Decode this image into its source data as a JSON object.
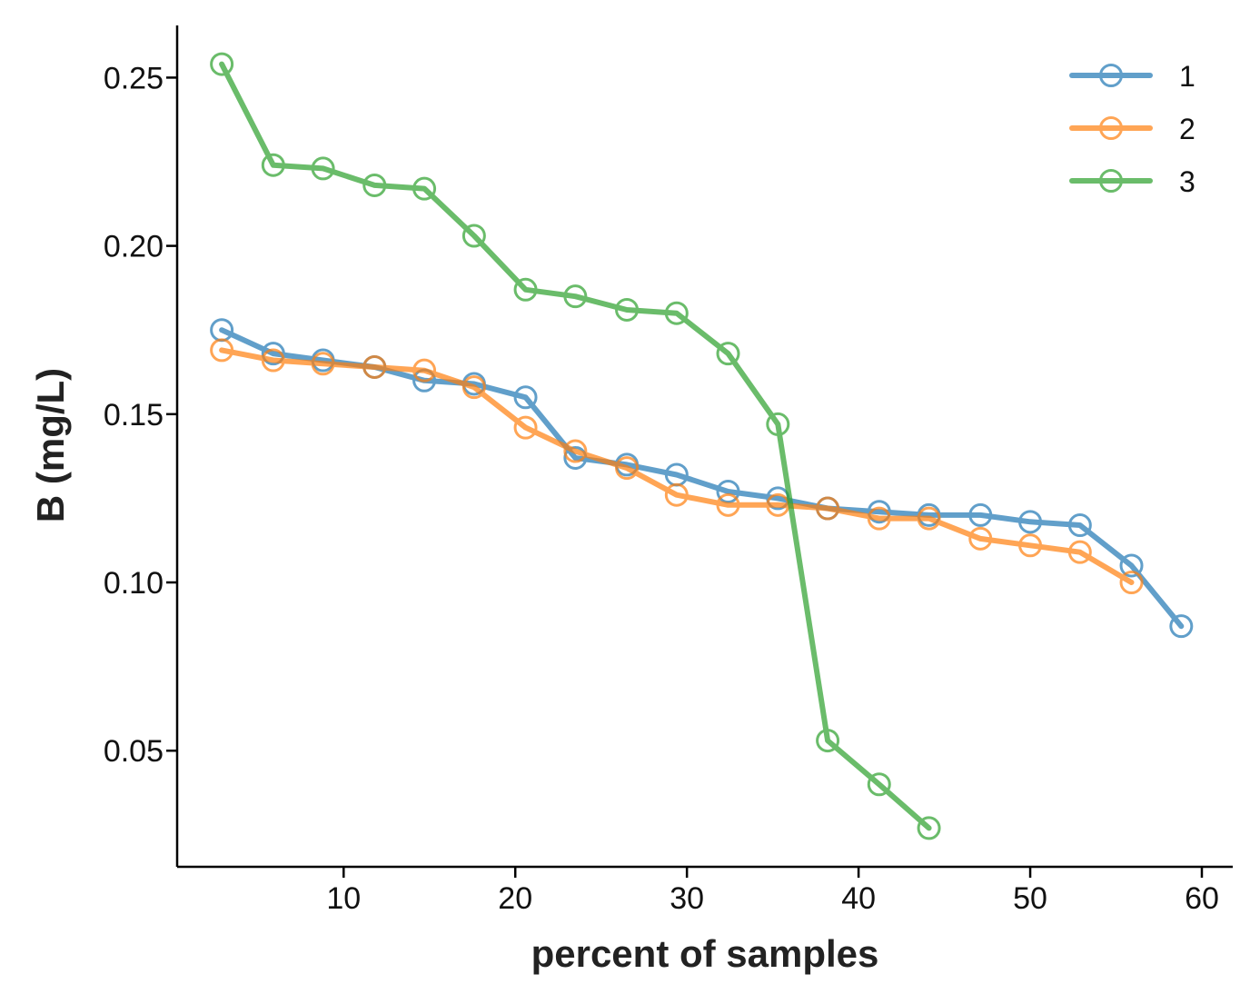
{
  "chart_data": {
    "type": "line",
    "xlabel": "percent of samples",
    "ylabel": "B (mg/L)",
    "xlim": [
      0.3,
      61.8
    ],
    "ylim": [
      0.0155,
      0.2655
    ],
    "xticks": [
      10,
      20,
      30,
      40,
      50,
      60
    ],
    "yticks": [
      0.05,
      0.1,
      0.15,
      0.2,
      0.25
    ],
    "xtick_labels": [
      "10",
      "20",
      "30",
      "40",
      "50",
      "60"
    ],
    "ytick_labels": [
      "0.05",
      "0.10",
      "0.15",
      "0.20",
      "0.25"
    ],
    "grid": false,
    "legend_position": "top-right",
    "series": [
      {
        "name": "1",
        "color": "#1f77b4",
        "x": [
          2.9,
          5.9,
          8.8,
          11.8,
          14.7,
          17.6,
          20.6,
          23.5,
          26.5,
          29.4,
          32.4,
          35.3,
          38.2,
          41.2,
          44.1,
          47.1,
          50.0,
          52.9,
          55.9,
          58.8
        ],
        "y": [
          0.175,
          0.168,
          0.166,
          0.164,
          0.16,
          0.159,
          0.155,
          0.137,
          0.135,
          0.132,
          0.127,
          0.125,
          0.122,
          0.121,
          0.12,
          0.12,
          0.118,
          0.117,
          0.105,
          0.087
        ]
      },
      {
        "name": "2",
        "color": "#ff7f0e",
        "x": [
          2.9,
          5.9,
          8.8,
          11.8,
          14.7,
          17.6,
          20.6,
          23.5,
          26.5,
          29.4,
          32.4,
          35.3,
          38.2,
          41.2,
          44.1,
          47.1,
          50.0,
          52.9,
          55.9
        ],
        "y": [
          0.169,
          0.166,
          0.165,
          0.164,
          0.163,
          0.158,
          0.146,
          0.139,
          0.134,
          0.126,
          0.123,
          0.123,
          0.122,
          0.119,
          0.119,
          0.113,
          0.111,
          0.109,
          0.1
        ]
      },
      {
        "name": "3",
        "color": "#2ca02c",
        "x": [
          2.9,
          5.9,
          8.8,
          11.8,
          14.7,
          17.6,
          20.6,
          23.5,
          26.5,
          29.4,
          32.4,
          35.3,
          38.2,
          41.2,
          44.1
        ],
        "y": [
          0.254,
          0.224,
          0.223,
          0.218,
          0.217,
          0.203,
          0.187,
          0.185,
          0.181,
          0.18,
          0.168,
          0.147,
          0.053,
          0.04,
          0.027
        ]
      }
    ]
  }
}
